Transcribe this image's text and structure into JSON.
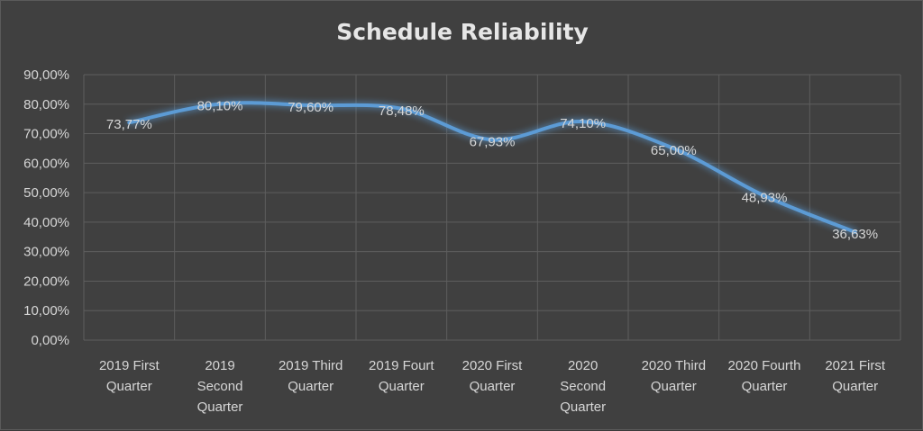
{
  "chart_data": {
    "type": "line",
    "title": "Schedule Reliability",
    "xlabel": "",
    "ylabel": "",
    "categories": [
      [
        "2019 First",
        "Quarter"
      ],
      [
        "2019",
        "Second",
        "Quarter"
      ],
      [
        "2019 Third",
        "Quarter"
      ],
      [
        "2019 Fourt",
        "Quarter"
      ],
      [
        "2020 First",
        "Quarter"
      ],
      [
        "2020",
        "Second",
        "Quarter"
      ],
      [
        "2020 Third",
        "Quarter"
      ],
      [
        "2020 Fourth",
        "Quarter"
      ],
      [
        "2021 First",
        "Quarter"
      ]
    ],
    "series": [
      {
        "values": [
          73.77,
          80.1,
          79.6,
          78.48,
          67.93,
          74.1,
          65.0,
          48.93,
          36.63
        ],
        "data_labels": [
          "73,77%",
          "80,10%",
          "79,60%",
          "78,48%",
          "67,93%",
          "74,10%",
          "65,00%",
          "48,93%",
          "36,63%"
        ],
        "color": "#5b9bd5"
      }
    ],
    "ylim": [
      0,
      90
    ],
    "yticks": [
      0,
      10,
      20,
      30,
      40,
      50,
      60,
      70,
      80,
      90
    ],
    "ytick_labels": [
      "0,00%",
      "10,00%",
      "20,00%",
      "30,00%",
      "40,00%",
      "50,00%",
      "60,00%",
      "70,00%",
      "80,00%",
      "90,00%"
    ],
    "grid": true,
    "legend": "none",
    "colors": {
      "background": "#404040",
      "grid": "#5e5e5e",
      "text": "#d6d6d6",
      "line": "#5b9bd5"
    }
  }
}
